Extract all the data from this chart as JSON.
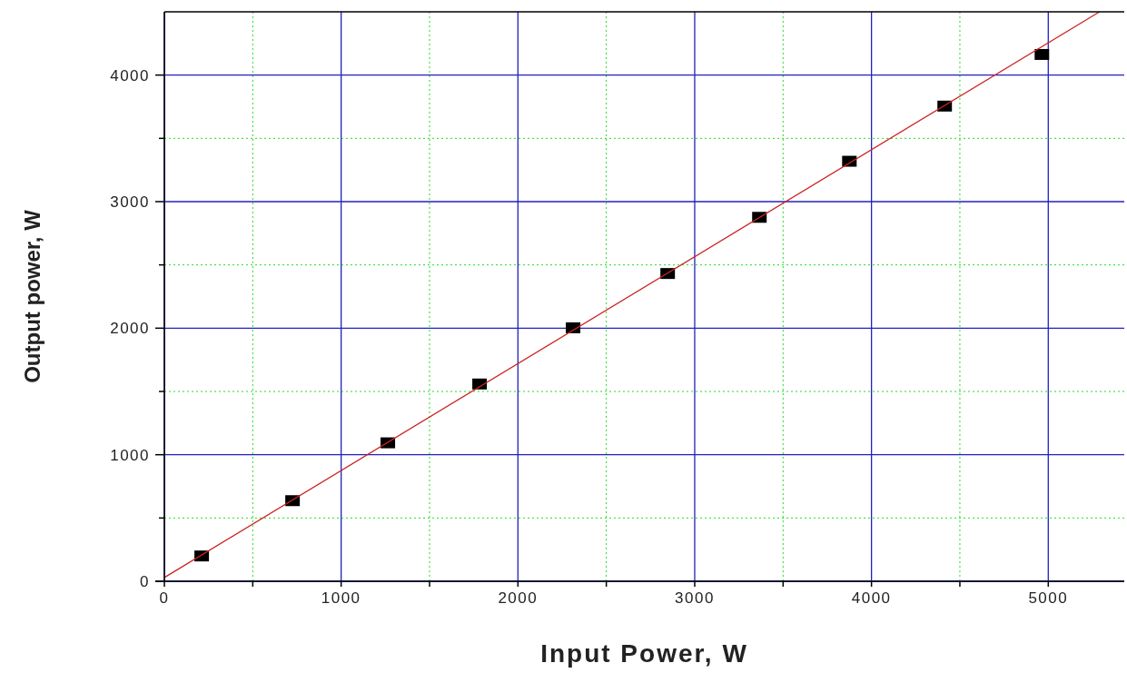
{
  "chart_data": {
    "type": "scatter",
    "xlabel": "Input Power, W",
    "ylabel": "Output power, W",
    "xlim": [
      0,
      5430
    ],
    "ylim": [
      0,
      4500
    ],
    "xticks": [
      0,
      {
        "value": 500,
        "label": null
      },
      1000,
      {
        "value": 1500,
        "label": null
      },
      2000,
      {
        "value": 2500,
        "label": null
      },
      3000,
      {
        "value": 3500,
        "label": null
      },
      4000,
      {
        "value": 4500,
        "label": null
      },
      5000
    ],
    "yticks": [
      0,
      {
        "value": 500,
        "label": null
      },
      1000,
      {
        "value": 1500,
        "label": null
      },
      2000,
      {
        "value": 2500,
        "label": null
      },
      3000,
      {
        "value": 3500,
        "label": null
      },
      4000
    ],
    "grid": true,
    "marker": "square",
    "series": [
      {
        "color": "#000000",
        "x": [
          211,
          725,
          1264,
          1783,
          2312,
          2847,
          3366,
          3875,
          4414,
          4964
        ],
        "values": [
          200,
          637,
          1094,
          1559,
          2003,
          2432,
          2876,
          3319,
          3755,
          4163
        ]
      },
      {
        "type": "line",
        "color": "#cc2222",
        "x": [
          0,
          5290
        ],
        "values": [
          30,
          4500
        ],
        "marker": "none",
        "line_style": "solid"
      }
    ]
  }
}
